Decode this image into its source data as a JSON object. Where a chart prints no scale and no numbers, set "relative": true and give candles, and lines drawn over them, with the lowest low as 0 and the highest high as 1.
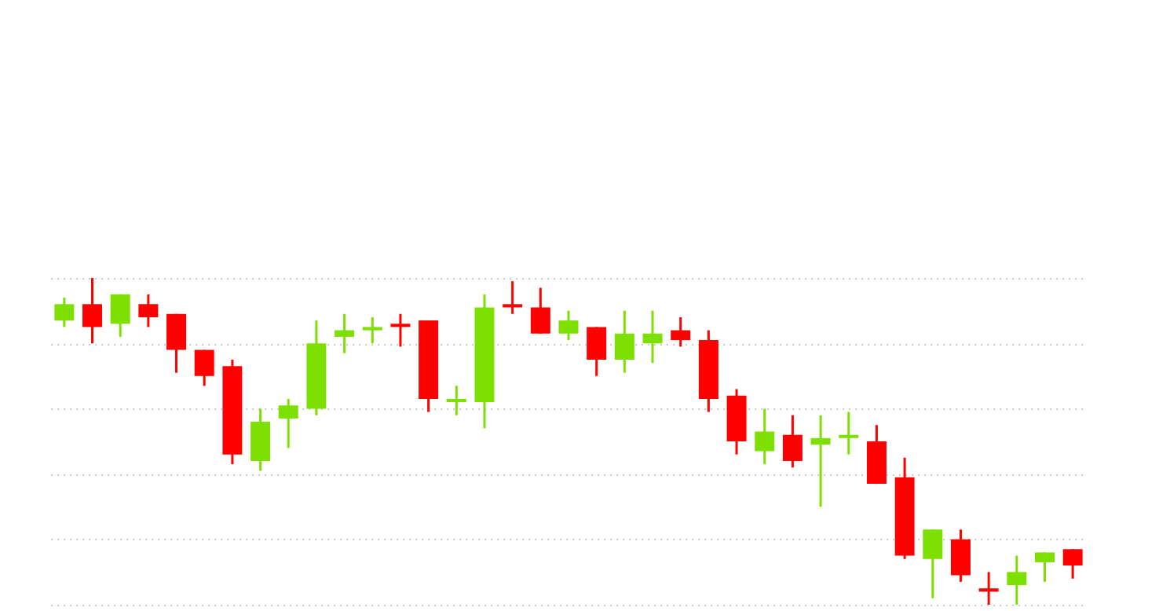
{
  "chart_data": {
    "type": "candlestick",
    "relative": true,
    "grid": true,
    "categories": [
      null,
      null,
      null,
      null,
      null,
      null,
      null,
      null,
      null,
      null,
      null,
      null,
      null,
      null,
      null,
      null,
      null,
      null,
      null,
      null,
      null,
      null,
      null,
      null,
      null,
      null,
      null,
      null,
      null,
      null,
      null,
      null,
      null,
      null,
      null,
      null,
      null
    ],
    "ohlc": [
      [
        0.87,
        0.94,
        0.85,
        0.92
      ],
      [
        0.92,
        1,
        0.8,
        0.85
      ],
      [
        0.86,
        0.95,
        0.82,
        0.95
      ],
      [
        0.92,
        0.95,
        0.85,
        0.88
      ],
      [
        0.89,
        0.89,
        0.71,
        0.78
      ],
      [
        0.78,
        0.78,
        0.67,
        0.7
      ],
      [
        0.73,
        0.75,
        0.43,
        0.46
      ],
      [
        0.44,
        0.6,
        0.41,
        0.56
      ],
      [
        0.57,
        0.63,
        0.48,
        0.61
      ],
      [
        0.6,
        0.87,
        0.58,
        0.8
      ],
      [
        0.82,
        0.89,
        0.77,
        0.84
      ],
      [
        0.84,
        0.88,
        0.8,
        0.85
      ],
      [
        0.86,
        0.89,
        0.79,
        0.85
      ],
      [
        0.87,
        0.87,
        0.59,
        0.63
      ],
      [
        0.62,
        0.67,
        0.58,
        0.63
      ],
      [
        0.62,
        0.95,
        0.54,
        0.91
      ],
      [
        0.92,
        0.99,
        0.89,
        0.91
      ],
      [
        0.91,
        0.97,
        0.83,
        0.83
      ],
      [
        0.83,
        0.9,
        0.81,
        0.87
      ],
      [
        0.85,
        0.85,
        0.7,
        0.75
      ],
      [
        0.75,
        0.9,
        0.71,
        0.83
      ],
      [
        0.8,
        0.9,
        0.74,
        0.83
      ],
      [
        0.84,
        0.88,
        0.79,
        0.81
      ],
      [
        0.81,
        0.84,
        0.59,
        0.63
      ],
      [
        0.64,
        0.66,
        0.46,
        0.5
      ],
      [
        0.47,
        0.6,
        0.43,
        0.53
      ],
      [
        0.52,
        0.58,
        0.42,
        0.44
      ],
      [
        0.49,
        0.58,
        0.3,
        0.51
      ],
      [
        0.51,
        0.59,
        0.46,
        0.52
      ],
      [
        0.5,
        0.55,
        0.37,
        0.37
      ],
      [
        0.39,
        0.45,
        0.14,
        0.15
      ],
      [
        0.14,
        0.23,
        0.02,
        0.23
      ],
      [
        0.2,
        0.23,
        0.07,
        0.09
      ],
      [
        0.05,
        0.1,
        0,
        0.04
      ],
      [
        0.06,
        0.15,
        0,
        0.1
      ],
      [
        0.13,
        0.16,
        0.07,
        0.16
      ],
      [
        0.17,
        0.17,
        0.08,
        0.12
      ]
    ],
    "colors": [
      "#7ee000",
      "#ff0000",
      "#7ee000",
      "#ff0000",
      "#ff0000",
      "#ff0000",
      "#ff0000",
      "#7ee000",
      "#7ee000",
      "#7ee000",
      "#7ee000",
      "#7ee000",
      "#ff0000",
      "#ff0000",
      "#7ee000",
      "#7ee000",
      "#ff0000",
      "#ff0000",
      "#7ee000",
      "#ff0000",
      "#7ee000",
      "#7ee000",
      "#ff0000",
      "#ff0000",
      "#ff0000",
      "#7ee000",
      "#ff0000",
      "#7ee000",
      "#7ee000",
      "#ff0000",
      "#ff0000",
      "#7ee000",
      "#ff0000",
      "#ff0000",
      "#7ee000",
      "#7ee000",
      "#ff0000"
    ]
  }
}
